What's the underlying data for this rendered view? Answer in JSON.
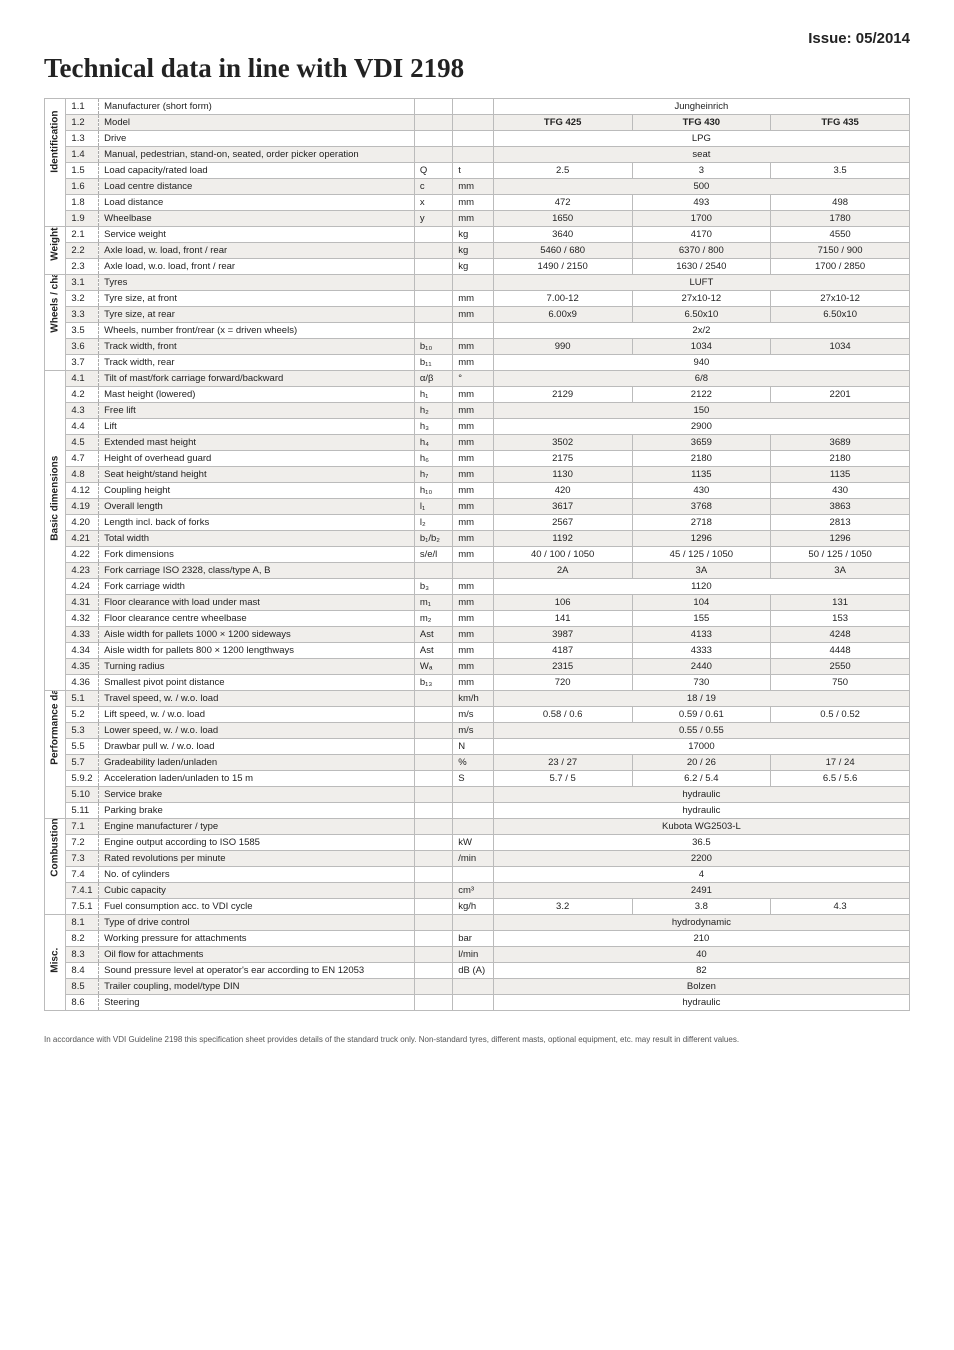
{
  "issue": "Issue: 05/2014",
  "title": "Technical data in line with VDI 2198",
  "columns": {
    "models": [
      "TFG 425",
      "TFG 430",
      "TFG 435"
    ]
  },
  "sections": [
    {
      "name": "Identification",
      "rows": [
        {
          "n": "1.1",
          "d": "Manufacturer (short form)",
          "s": "",
          "u": "",
          "v": [
            "",
            "Jungheinrich",
            ""
          ],
          "span": "c"
        },
        {
          "n": "1.2",
          "d": "Model",
          "s": "",
          "u": "",
          "v": [
            "TFG 425",
            "TFG 430",
            "TFG 435"
          ],
          "bold": true
        },
        {
          "n": "1.3",
          "d": "Drive",
          "s": "",
          "u": "",
          "v": [
            "",
            "LPG",
            ""
          ],
          "span": "c"
        },
        {
          "n": "1.4",
          "d": "Manual, pedestrian, stand-on, seated, order picker operation",
          "s": "",
          "u": "",
          "v": [
            "",
            "seat",
            ""
          ],
          "span": "c"
        },
        {
          "n": "1.5",
          "d": "Load capacity/rated load",
          "s": "Q",
          "u": "t",
          "v": [
            "2.5",
            "3",
            "3.5"
          ]
        },
        {
          "n": "1.6",
          "d": "Load centre distance",
          "s": "c",
          "u": "mm",
          "v": [
            "",
            "500",
            ""
          ],
          "span": "c"
        },
        {
          "n": "1.8",
          "d": "Load distance",
          "s": "x",
          "u": "mm",
          "v": [
            "472",
            "493",
            "498"
          ]
        },
        {
          "n": "1.9",
          "d": "Wheelbase",
          "s": "y",
          "u": "mm",
          "v": [
            "1650",
            "1700",
            "1780"
          ]
        }
      ]
    },
    {
      "name": "Weights",
      "rows": [
        {
          "n": "2.1",
          "d": "Service weight",
          "s": "",
          "u": "kg",
          "v": [
            "3640",
            "4170",
            "4550"
          ]
        },
        {
          "n": "2.2",
          "d": "Axle load, w. load, front / rear",
          "s": "",
          "u": "kg",
          "v": [
            "5460 / 680",
            "6370 / 800",
            "7150 / 900"
          ]
        },
        {
          "n": "2.3",
          "d": "Axle load, w.o. load, front / rear",
          "s": "",
          "u": "kg",
          "v": [
            "1490 / 2150",
            "1630 / 2540",
            "1700 / 2850"
          ]
        }
      ]
    },
    {
      "name": "Wheels / chassis",
      "rows": [
        {
          "n": "3.1",
          "d": "Tyres",
          "s": "",
          "u": "",
          "v": [
            "",
            "LUFT",
            ""
          ],
          "span": "c"
        },
        {
          "n": "3.2",
          "d": "Tyre size, at front",
          "s": "",
          "u": "mm",
          "v": [
            "7.00-12",
            "27x10-12",
            "27x10-12"
          ]
        },
        {
          "n": "3.3",
          "d": "Tyre size, at rear",
          "s": "",
          "u": "mm",
          "v": [
            "6.00x9",
            "6.50x10",
            "6.50x10"
          ]
        },
        {
          "n": "3.5",
          "d": "Wheels, number front/rear (x = driven wheels)",
          "s": "",
          "u": "",
          "v": [
            "",
            "2x/2",
            ""
          ],
          "span": "c"
        },
        {
          "n": "3.6",
          "d": "Track width, front",
          "s": "b₁₀",
          "u": "mm",
          "v": [
            "990",
            "1034",
            "1034"
          ]
        },
        {
          "n": "3.7",
          "d": "Track width, rear",
          "s": "b₁₁",
          "u": "mm",
          "v": [
            "",
            "940",
            ""
          ],
          "span": "c"
        }
      ]
    },
    {
      "name": "Basic dimensions",
      "rows": [
        {
          "n": "4.1",
          "d": "Tilt of mast/fork carriage forward/backward",
          "s": "α/β",
          "u": "°",
          "v": [
            "",
            "6/8",
            ""
          ],
          "span": "c"
        },
        {
          "n": "4.2",
          "d": "Mast height (lowered)",
          "s": "h₁",
          "u": "mm",
          "v": [
            "2129",
            "2122",
            "2201"
          ]
        },
        {
          "n": "4.3",
          "d": "Free lift",
          "s": "h₂",
          "u": "mm",
          "v": [
            "",
            "150",
            ""
          ],
          "span": "c"
        },
        {
          "n": "4.4",
          "d": "Lift",
          "s": "h₃",
          "u": "mm",
          "v": [
            "",
            "2900",
            ""
          ],
          "span": "c"
        },
        {
          "n": "4.5",
          "d": "Extended mast height",
          "s": "h₄",
          "u": "mm",
          "v": [
            "3502",
            "3659",
            "3689"
          ]
        },
        {
          "n": "4.7",
          "d": "Height of overhead guard",
          "s": "h₆",
          "u": "mm",
          "v": [
            "2175",
            "2180",
            "2180"
          ]
        },
        {
          "n": "4.8",
          "d": "Seat height/stand height",
          "s": "h₇",
          "u": "mm",
          "v": [
            "1130",
            "1135",
            "1135"
          ]
        },
        {
          "n": "4.12",
          "d": "Coupling height",
          "s": "h₁₀",
          "u": "mm",
          "v": [
            "420",
            "430",
            "430"
          ]
        },
        {
          "n": "4.19",
          "d": "Overall length",
          "s": "l₁",
          "u": "mm",
          "v": [
            "3617",
            "3768",
            "3863"
          ]
        },
        {
          "n": "4.20",
          "d": "Length incl. back of forks",
          "s": "l₂",
          "u": "mm",
          "v": [
            "2567",
            "2718",
            "2813"
          ]
        },
        {
          "n": "4.21",
          "d": "Total width",
          "s": "b₁/b₂",
          "u": "mm",
          "v": [
            "1192",
            "1296",
            "1296"
          ]
        },
        {
          "n": "4.22",
          "d": "Fork dimensions",
          "s": "s/e/l",
          "u": "mm",
          "v": [
            "40 / 100 / 1050",
            "45 / 125 / 1050",
            "50 / 125 / 1050"
          ]
        },
        {
          "n": "4.23",
          "d": "Fork carriage ISO 2328, class/type A, B",
          "s": "",
          "u": "",
          "v": [
            "2A",
            "3A",
            "3A"
          ]
        },
        {
          "n": "4.24",
          "d": "Fork carriage width",
          "s": "b₃",
          "u": "mm",
          "v": [
            "",
            "1120",
            ""
          ],
          "span": "c"
        },
        {
          "n": "4.31",
          "d": "Floor clearance with load under mast",
          "s": "m₁",
          "u": "mm",
          "v": [
            "106",
            "104",
            "131"
          ]
        },
        {
          "n": "4.32",
          "d": "Floor clearance centre wheelbase",
          "s": "m₂",
          "u": "mm",
          "v": [
            "141",
            "155",
            "153"
          ]
        },
        {
          "n": "4.33",
          "d": "Aisle width for pallets 1000 × 1200 sideways",
          "s": "Ast",
          "u": "mm",
          "v": [
            "3987",
            "4133",
            "4248"
          ]
        },
        {
          "n": "4.34",
          "d": "Aisle width for pallets 800 × 1200 lengthways",
          "s": "Ast",
          "u": "mm",
          "v": [
            "4187",
            "4333",
            "4448"
          ]
        },
        {
          "n": "4.35",
          "d": "Turning radius",
          "s": "Wₐ",
          "u": "mm",
          "v": [
            "2315",
            "2440",
            "2550"
          ]
        },
        {
          "n": "4.36",
          "d": "Smallest pivot point distance",
          "s": "b₁₃",
          "u": "mm",
          "v": [
            "720",
            "730",
            "750"
          ]
        }
      ]
    },
    {
      "name": "Performance data",
      "rows": [
        {
          "n": "5.1",
          "d": "Travel speed, w. / w.o. load",
          "s": "",
          "u": "km/h",
          "v": [
            "",
            "18 / 19",
            ""
          ],
          "span": "c"
        },
        {
          "n": "5.2",
          "d": "Lift speed, w. / w.o. load",
          "s": "",
          "u": "m/s",
          "v": [
            "0.58 / 0.6",
            "0.59 / 0.61",
            "0.5 / 0.52"
          ]
        },
        {
          "n": "5.3",
          "d": "Lower speed, w. / w.o. load",
          "s": "",
          "u": "m/s",
          "v": [
            "",
            "0.55 / 0.55",
            ""
          ],
          "span": "c"
        },
        {
          "n": "5.5",
          "d": "Drawbar pull w. / w.o. load",
          "s": "",
          "u": "N",
          "v": [
            "",
            "17000",
            ""
          ],
          "span": "c"
        },
        {
          "n": "5.7",
          "d": "Gradeability laden/unladen",
          "s": "",
          "u": "%",
          "v": [
            "23 / 27",
            "20 / 26",
            "17 / 24"
          ]
        },
        {
          "n": "5.9.2",
          "d": "Acceleration laden/unladen to 15 m",
          "s": "",
          "u": "S",
          "v": [
            "5.7 / 5",
            "6.2 / 5.4",
            "6.5 / 5.6"
          ]
        },
        {
          "n": "5.10",
          "d": "Service brake",
          "s": "",
          "u": "",
          "v": [
            "",
            "hydraulic",
            ""
          ],
          "span": "c"
        },
        {
          "n": "5.11",
          "d": "Parking brake",
          "s": "",
          "u": "",
          "v": [
            "",
            "hydraulic",
            ""
          ],
          "span": "c"
        }
      ]
    },
    {
      "name": "Combustion engine",
      "rows": [
        {
          "n": "7.1",
          "d": "Engine manufacturer / type",
          "s": "",
          "u": "",
          "v": [
            "",
            "Kubota WG2503-L",
            ""
          ],
          "span": "c"
        },
        {
          "n": "7.2",
          "d": "Engine output according to ISO 1585",
          "s": "",
          "u": "kW",
          "v": [
            "",
            "36.5",
            ""
          ],
          "span": "c"
        },
        {
          "n": "7.3",
          "d": "Rated revolutions per minute",
          "s": "",
          "u": "/min",
          "v": [
            "",
            "2200",
            ""
          ],
          "span": "c"
        },
        {
          "n": "7.4",
          "d": "No. of cylinders",
          "s": "",
          "u": "",
          "v": [
            "",
            "4",
            ""
          ],
          "span": "c"
        },
        {
          "n": "7.4.1",
          "d": "Cubic capacity",
          "s": "",
          "u": "cm³",
          "v": [
            "",
            "2491",
            ""
          ],
          "span": "c"
        },
        {
          "n": "7.5.1",
          "d": "Fuel consumption acc. to VDI cycle",
          "s": "",
          "u": "kg/h",
          "v": [
            "3.2",
            "3.8",
            "4.3"
          ]
        }
      ]
    },
    {
      "name": "Misc.",
      "rows": [
        {
          "n": "8.1",
          "d": "Type of drive control",
          "s": "",
          "u": "",
          "v": [
            "",
            "hydrodynamic",
            ""
          ],
          "span": "c"
        },
        {
          "n": "8.2",
          "d": "Working pressure for attachments",
          "s": "",
          "u": "bar",
          "v": [
            "",
            "210",
            ""
          ],
          "span": "c"
        },
        {
          "n": "8.3",
          "d": "Oil flow for attachments",
          "s": "",
          "u": "l/min",
          "v": [
            "",
            "40",
            ""
          ],
          "span": "c"
        },
        {
          "n": "8.4",
          "d": "Sound pressure level at operator's ear according to EN 12053",
          "s": "",
          "u": "dB (A)",
          "v": [
            "",
            "82",
            ""
          ],
          "span": "c"
        },
        {
          "n": "8.5",
          "d": "Trailer coupling, model/type DIN",
          "s": "",
          "u": "",
          "v": [
            "",
            "Bolzen",
            ""
          ],
          "span": "c"
        },
        {
          "n": "8.6",
          "d": "Steering",
          "s": "",
          "u": "",
          "v": [
            "",
            "hydraulic",
            ""
          ],
          "span": "c"
        }
      ]
    }
  ],
  "footnote": "In accordance with VDI Guideline 2198 this specification sheet provides details of the standard truck only. Non-standard tyres, different masts, optional equipment, etc. may result in different values.",
  "styling": {
    "page_bg": "#ffffff",
    "text_color": "#222222",
    "border_color": "#bbbbbb",
    "stripe_color": "#f0eeeb",
    "title_fontsize": 27,
    "body_fontsize": 9.5,
    "col_widths": {
      "section": 19,
      "num": 29,
      "desc": 280,
      "sym": 34,
      "unit": 36,
      "val": 123
    }
  }
}
